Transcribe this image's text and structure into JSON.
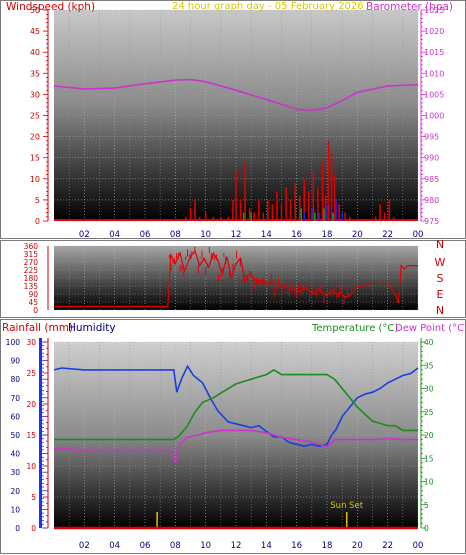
{
  "titles": {
    "windspeed": "Windspeed (kph)",
    "graph_day": "24 hour graph day - 05 February 2026",
    "barometer": "Barometer (hpa)",
    "rainfall": "Rainfall (mm)",
    "humidity": "Humidity",
    "temperature": "Temperature (°C)",
    "dewpoint": "Dew Point (°C)",
    "sunset": "Sun Set"
  },
  "colors": {
    "red": "#e00000",
    "magenta": "#cc33cc",
    "yellow": "#d8c800",
    "blue": "#1a3fe0",
    "green": "#1d8a1d",
    "navy": "#000080",
    "gust_blue": "#2222ee",
    "gust_green": "#119911"
  },
  "chart_data": [
    {
      "type": "line",
      "name_key": "wind_panel",
      "xlabel": "",
      "x_ticks": [
        "02",
        "04",
        "06",
        "08",
        "10",
        "12",
        "14",
        "16",
        "18",
        "20",
        "22",
        "00"
      ],
      "x_range_hours": [
        0,
        24
      ],
      "left_axis": {
        "label": "Windspeed (kph)",
        "ylim": [
          0,
          50
        ],
        "ticks": [
          "0",
          "5",
          "10",
          "15",
          "20",
          "25",
          "30",
          "35",
          "40",
          "45",
          "50"
        ]
      },
      "right_axis": {
        "label": "Barometer (hpa)",
        "ylim": [
          975,
          1025
        ],
        "ticks": [
          "975",
          "980",
          "985",
          "990",
          "995",
          "1000",
          "1005",
          "1010",
          "1015",
          "1020",
          "1025"
        ]
      },
      "series": [
        {
          "name": "Barometer (hpa)",
          "color_key": "magenta",
          "axis": "right",
          "x": [
            0,
            2,
            4,
            6,
            8,
            9,
            10,
            12,
            14,
            16,
            17,
            18,
            19,
            20,
            22,
            24
          ],
          "y": [
            1007,
            1006.3,
            1006.5,
            1007.5,
            1008.4,
            1008.5,
            1008,
            1006,
            1003.8,
            1001.5,
            1001.2,
            1001.8,
            1003.5,
            1005.5,
            1007,
            1007.3
          ]
        },
        {
          "name": "Windspeed (kph)",
          "color_key": "red",
          "axis": "left",
          "x": [
            8.7,
            9.0,
            9.3,
            9.6,
            10.0,
            10.5,
            11.0,
            11.5,
            11.8,
            12.0,
            12.3,
            12.6,
            12.9,
            13.2,
            13.5,
            13.8,
            14.1,
            14.4,
            14.7,
            15.0,
            15.3,
            15.6,
            15.9,
            16.2,
            16.5,
            16.8,
            17.1,
            17.4,
            17.7,
            17.9,
            18.1,
            18.3,
            18.5,
            18.8,
            19.2,
            19.5,
            21.2,
            21.5,
            21.8,
            22.1,
            22.4
          ],
          "y": [
            1,
            3,
            5,
            1,
            2,
            1,
            1,
            1,
            5,
            12,
            5,
            14,
            3,
            2,
            5,
            2,
            5,
            4,
            7,
            4,
            8,
            5,
            9,
            6,
            10,
            7,
            12,
            8,
            14,
            6,
            19,
            16,
            11,
            4,
            2,
            1,
            1,
            4,
            2,
            5,
            1
          ]
        },
        {
          "name": "Wind gust (blue)",
          "color_key": "gust_blue",
          "axis": "left",
          "x": [
            16.5,
            17.0,
            17.5,
            18.0,
            18.3,
            18.6,
            19.0
          ],
          "y": [
            2,
            3,
            2,
            4,
            3,
            5,
            2
          ]
        },
        {
          "name": "Wind gust (green)",
          "color_key": "gust_green",
          "axis": "left",
          "x": [
            12.5,
            13.0,
            16.3,
            17.2,
            17.8,
            18.4
          ],
          "y": [
            2,
            2,
            3,
            2,
            3,
            2
          ]
        }
      ]
    },
    {
      "type": "scatter",
      "name_key": "direction_panel",
      "x_range_hours": [
        0,
        24
      ],
      "left_axis": {
        "ylim": [
          0,
          360
        ],
        "ticks": [
          "0",
          "45",
          "90",
          "135",
          "180",
          "225",
          "270",
          "315",
          "360"
        ]
      },
      "compass_labels": [
        "N",
        "W",
        "S",
        "E",
        "N"
      ],
      "series": [
        {
          "name": "Wind direction",
          "color_key": "red",
          "x": [
            0,
            2,
            4.5,
            7.5,
            7.7,
            8,
            8.3,
            8.6,
            9,
            9.3,
            9.6,
            9.9,
            10.2,
            10.5,
            10.8,
            11.1,
            11.4,
            11.7,
            12,
            12.3,
            12.6,
            12.9,
            13.2,
            13.5,
            13.8,
            14.1,
            14.4,
            14.7,
            15,
            15.3,
            15.6,
            15.9,
            16.2,
            16.5,
            16.8,
            17.1,
            17.4,
            17.7,
            18,
            18.3,
            18.6,
            18.9,
            19.2,
            19.5,
            20,
            21,
            22,
            22.5,
            22.7,
            22.9,
            23.1,
            23.3,
            24
          ],
          "y": [
            20,
            20,
            20,
            20,
            310,
            260,
            320,
            220,
            300,
            330,
            250,
            290,
            240,
            320,
            280,
            200,
            300,
            180,
            260,
            290,
            160,
            200,
            180,
            150,
            170,
            140,
            160,
            120,
            140,
            130,
            110,
            120,
            100,
            130,
            110,
            90,
            120,
            100,
            80,
            110,
            90,
            100,
            70,
            80,
            130,
            150,
            150,
            90,
            40,
            250,
            230,
            250,
            250
          ]
        }
      ]
    },
    {
      "type": "line",
      "name_key": "temp_panel",
      "x_ticks": [
        "02",
        "04",
        "06",
        "08",
        "10",
        "12",
        "14",
        "16",
        "18",
        "20",
        "22",
        "00"
      ],
      "x_range_hours": [
        0,
        24
      ],
      "rain_axis": {
        "label": "Rainfall (mm)",
        "ylim": [
          0,
          30
        ],
        "ticks": [
          "0",
          "5",
          "10",
          "15",
          "20",
          "25",
          "30"
        ]
      },
      "humidity_axis": {
        "label": "Humidity",
        "ylim": [
          0,
          100
        ],
        "ticks": [
          "0",
          "10",
          "20",
          "30",
          "40",
          "50",
          "60",
          "70",
          "80",
          "90",
          "100"
        ]
      },
      "temp_axis": {
        "label": "Temperature (°C)",
        "ylim": [
          0,
          40
        ],
        "ticks": [
          "0",
          "5",
          "10",
          "15",
          "20",
          "25",
          "30",
          "35",
          "40"
        ]
      },
      "annotations": [
        {
          "text": "Sun Set",
          "x": 19.3
        },
        {
          "text": "",
          "x": 6.8
        }
      ],
      "series": [
        {
          "name": "Humidity",
          "color_key": "blue",
          "axis": "humidity",
          "x": [
            0,
            0.5,
            2,
            4,
            6,
            7.9,
            8.1,
            8.4,
            8.8,
            9.2,
            9.8,
            10.3,
            10.8,
            11.5,
            12,
            12.5,
            13,
            13.5,
            14,
            14.5,
            15,
            15.5,
            16,
            16.5,
            17,
            17.5,
            18,
            18.3,
            18.6,
            19,
            19.5,
            20,
            20.5,
            21,
            21.5,
            22,
            22.5,
            23,
            23.5,
            24
          ],
          "y": [
            85,
            86,
            85,
            85,
            85,
            85,
            73,
            80,
            87,
            82,
            78,
            70,
            63,
            57,
            56,
            55,
            54,
            55,
            52,
            49,
            49,
            46,
            45,
            44,
            45,
            44,
            45,
            50,
            53,
            60,
            65,
            70,
            72,
            73,
            75,
            78,
            80,
            82,
            83,
            86
          ]
        },
        {
          "name": "Temperature (°C)",
          "color_key": "green",
          "axis": "temp",
          "x": [
            0,
            1,
            2,
            4,
            6,
            7.9,
            8.3,
            8.8,
            9.3,
            9.8,
            10.5,
            11,
            12,
            13,
            14,
            14.5,
            15,
            16,
            17,
            18,
            18.5,
            19,
            19.5,
            20,
            21,
            22,
            22.5,
            23,
            24
          ],
          "y": [
            19,
            19,
            19,
            19,
            19,
            19,
            20,
            22,
            25,
            27,
            28,
            29,
            31,
            32,
            33,
            34,
            33,
            33,
            33,
            33,
            32,
            30,
            28,
            26,
            23,
            22,
            22,
            21,
            21
          ]
        },
        {
          "name": "Dew Point (°C)",
          "color_key": "magenta",
          "axis": "temp",
          "x": [
            0,
            1,
            2,
            4,
            6,
            7.8,
            8.0,
            8.3,
            8.8,
            9.5,
            10,
            11,
            12,
            13,
            14,
            15,
            16,
            17,
            18,
            18.5,
            19,
            20,
            21,
            22,
            23,
            24
          ],
          "y": [
            17,
            17,
            16.5,
            16.5,
            16.5,
            16.5,
            14,
            18,
            19.5,
            20,
            20.5,
            21,
            21,
            21,
            20.5,
            19.5,
            19,
            18.5,
            17.5,
            19,
            19,
            19,
            19,
            19.2,
            19,
            19
          ]
        },
        {
          "name": "Rainfall (mm)",
          "color_key": "red",
          "axis": "rain",
          "x": [
            0,
            24
          ],
          "y": [
            0,
            0
          ]
        }
      ]
    }
  ]
}
